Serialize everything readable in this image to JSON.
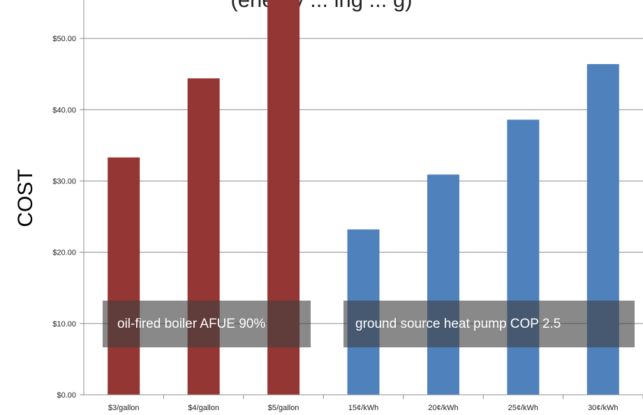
{
  "chart_data": {
    "type": "bar",
    "title": "(energy ... ing ... g)",
    "ylabel": "COST",
    "xlabel": "",
    "ylim": [
      0,
      55
    ],
    "yticks": [
      0,
      10,
      20,
      30,
      40,
      50
    ],
    "ytick_labels": [
      "$0.00",
      "$10.00",
      "$20.00",
      "$30.00",
      "$40.00",
      "$50.00"
    ],
    "categories": [
      "$3/gallon",
      "$4/gallon",
      "$5/gallon",
      "15¢/kWh",
      "20¢/kWh",
      "25¢/kWh",
      "30¢/kWh"
    ],
    "values": [
      33.3,
      44.4,
      55.6,
      23.2,
      30.9,
      38.6,
      46.4
    ],
    "bar_colors": [
      "#943634",
      "#943634",
      "#943634",
      "#4f81bd",
      "#4f81bd",
      "#4f81bd",
      "#4f81bd"
    ],
    "grid": true,
    "annotations": [
      {
        "text": "oil-fired boiler AFUE 90%",
        "group": "oil"
      },
      {
        "text": "ground source heat pump COP 2.5",
        "group": "heat-pump"
      }
    ]
  }
}
